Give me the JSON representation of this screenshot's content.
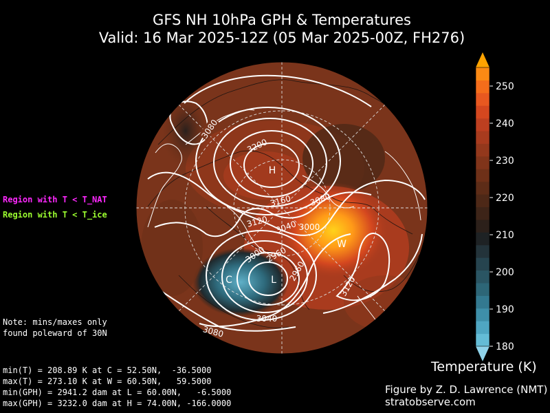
{
  "title": {
    "line1": "GFS NH 10hPa GPH & Temperatures",
    "line2": "Valid: 16 Mar 2025-12Z  (05 Mar 2025-00Z, FH276)"
  },
  "legend": {
    "nat_label": "Region with T < T_NAT",
    "ice_label": "Region with T < T_ice",
    "nat_color": "#ff28ff",
    "ice_color": "#9cff30"
  },
  "note": [
    "Note: mins/maxes only",
    "found poleward of 30N"
  ],
  "stats": [
    "min(T) = 208.89 K at C = 52.50N,  -36.5000",
    "max(T) = 273.10 K at W = 60.50N,   59.5000",
    "min(GPH) = 2941.2 dam at L = 60.00N,   -6.5000",
    "max(GPH) = 3232.0 dam at H = 74.00N, -166.0000"
  ],
  "colorbar": {
    "title": "Temperature (K)",
    "ticks": [
      "180",
      "190",
      "200",
      "210",
      "220",
      "230",
      "240",
      "250"
    ],
    "range": [
      180,
      255
    ],
    "colors": [
      "#64bcd6",
      "#4fa6c2",
      "#3e8fa9",
      "#337990",
      "#2d6677",
      "#2a5563",
      "#26444f",
      "#23333a",
      "#1e2224",
      "#2c201a",
      "#3d2418",
      "#4d2817",
      "#5d2c17",
      "#6e3018",
      "#80341a",
      "#93381c",
      "#a83b1e",
      "#bd3f20",
      "#d4471f",
      "#e85820",
      "#f56d1b",
      "#fb8a14"
    ]
  },
  "map": {
    "highs_lows": [
      {
        "label": "H"
      },
      {
        "label": "L"
      },
      {
        "label": "C"
      },
      {
        "label": "W"
      }
    ],
    "contour_labels": [
      "3080",
      "3200",
      "3160",
      "3080",
      "3120",
      "3040",
      "3000",
      "3000",
      "2960",
      "2960",
      "3040",
      "3080",
      "3120"
    ]
  },
  "credit": [
    "Figure by Z. D. Lawrence (NMT)",
    "stratobserve.com"
  ]
}
